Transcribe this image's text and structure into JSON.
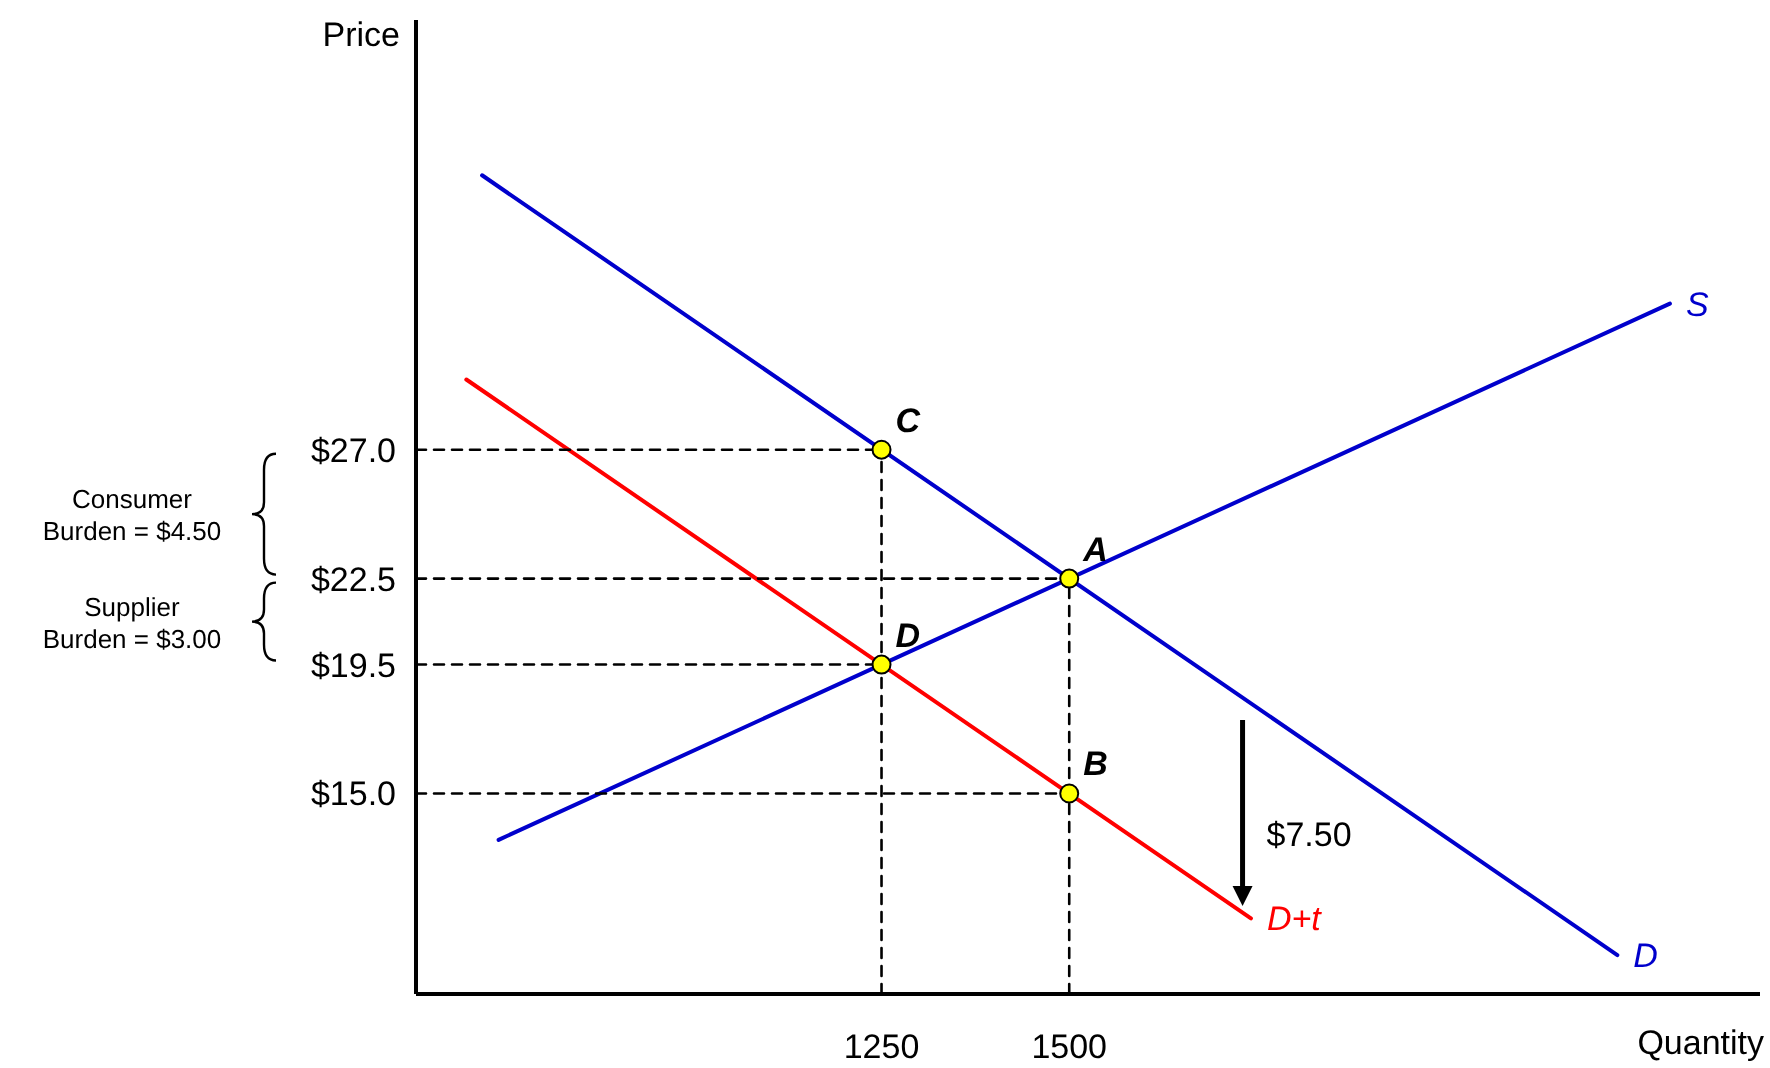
{
  "chart_data": {
    "type": "line",
    "xlabel": "Quantity",
    "ylabel": "Price",
    "xlim": [
      630,
      2420
    ],
    "ylim": [
      8,
      42
    ],
    "xticks": [
      1250,
      1500
    ],
    "yticks": [
      {
        "value": 15,
        "label": "$15.0"
      },
      {
        "value": 19.5,
        "label": "$19.5"
      },
      {
        "value": 22.5,
        "label": "$22.5"
      },
      {
        "value": 27,
        "label": "$27.0"
      }
    ],
    "grid": false,
    "series": [
      {
        "name": "S",
        "color": "#0000cc",
        "x": [
          740,
          2300
        ],
        "values": [
          13.38,
          32.1
        ]
      },
      {
        "name": "D",
        "color": "#0000cc",
        "x": [
          718,
          2230
        ],
        "values": [
          36.58,
          9.36
        ]
      },
      {
        "name": "D+t",
        "color": "#ff0000",
        "x": [
          697,
          1742
        ],
        "values": [
          29.45,
          10.64
        ]
      },
      {
        "color": "#000000",
        "line_style": "dashed",
        "x": [
          630,
          1250
        ],
        "values": [
          27,
          27
        ]
      },
      {
        "color": "#000000",
        "line_style": "dashed",
        "x": [
          630,
          1500
        ],
        "values": [
          22.5,
          22.5
        ]
      },
      {
        "color": "#000000",
        "line_style": "dashed",
        "x": [
          630,
          1250
        ],
        "values": [
          19.5,
          19.5
        ]
      },
      {
        "color": "#000000",
        "line_style": "dashed",
        "x": [
          630,
          1500
        ],
        "values": [
          15,
          15
        ]
      },
      {
        "color": "#000000",
        "line_style": "dashed",
        "x": [
          1250,
          1250
        ],
        "values": [
          8,
          27
        ]
      },
      {
        "color": "#000000",
        "line_style": "dashed",
        "x": [
          1500,
          1500
        ],
        "values": [
          8,
          22.5
        ]
      },
      {
        "type": "scatter",
        "color": "#ffff00",
        "marker": "circle",
        "x": [
          1500,
          1500,
          1250,
          1250
        ],
        "values": [
          22.5,
          15,
          27,
          19.5
        ]
      }
    ],
    "annotations": [
      "A",
      "B",
      "C",
      "D",
      "$7.50",
      "Consumer Burden = $4.50",
      "Supplier Burden = $3.00"
    ]
  }
}
